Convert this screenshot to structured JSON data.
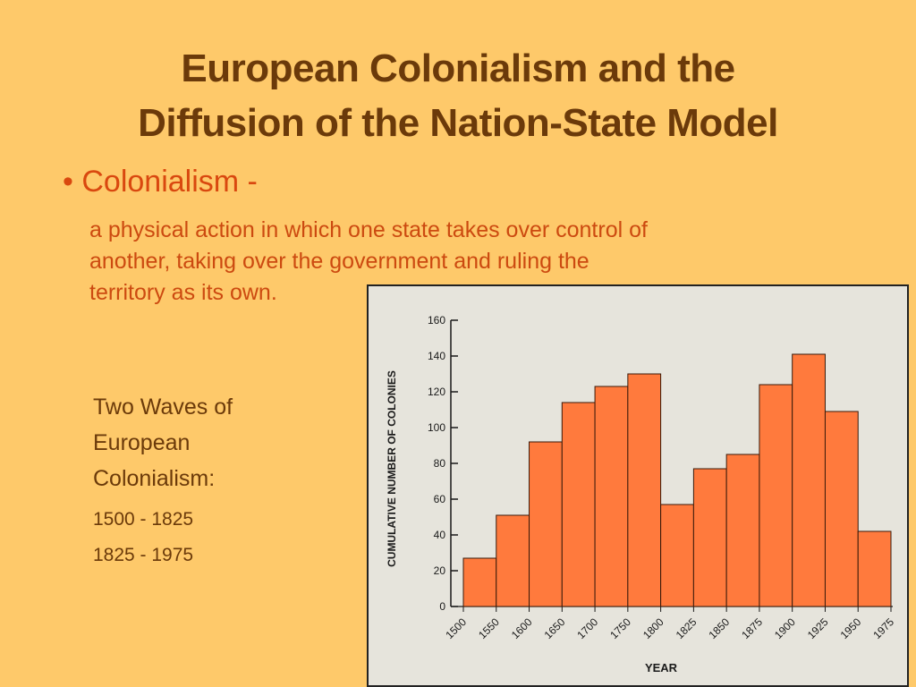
{
  "slide": {
    "title_line1": "European Colonialism and the",
    "title_line2": "Diffusion of the Nation-State Model",
    "bullet_symbol": "•",
    "bullet_term": "Colonialism -",
    "definition_line1": "a physical action in which one state takes over control of",
    "definition_line2": "another, taking over the government and ruling the",
    "definition_line3": "territory as its own.",
    "waves_heading_line1": "Two Waves of",
    "waves_heading_line2": "European",
    "waves_heading_line3": "Colonialism:",
    "wave1": "1500 - 1825",
    "wave2": "1825 - 1975"
  },
  "colors": {
    "background": "#fec96a",
    "title": "#6b3a0a",
    "bullet_text": "#d9480f",
    "bar_fill": "#ff7a3d",
    "bar_stroke": "#3a1a0a",
    "chart_background": "#e6e4dc"
  },
  "chart_data": {
    "type": "bar",
    "title": "",
    "xlabel": "YEAR",
    "ylabel": "CUMULATIVE NUMBER OF COLONIES",
    "x_ticks": [
      "1500",
      "1550",
      "1600",
      "1650",
      "1700",
      "1750",
      "1800",
      "1825",
      "1850",
      "1875",
      "1900",
      "1925",
      "1950",
      "1975"
    ],
    "values": [
      27,
      51,
      92,
      114,
      123,
      130,
      57,
      77,
      85,
      124,
      141,
      109,
      42
    ],
    "y_ticks": [
      0,
      20,
      40,
      60,
      80,
      100,
      120,
      140,
      160
    ],
    "ylim": [
      0,
      160
    ],
    "grid": false,
    "legend": "none"
  }
}
